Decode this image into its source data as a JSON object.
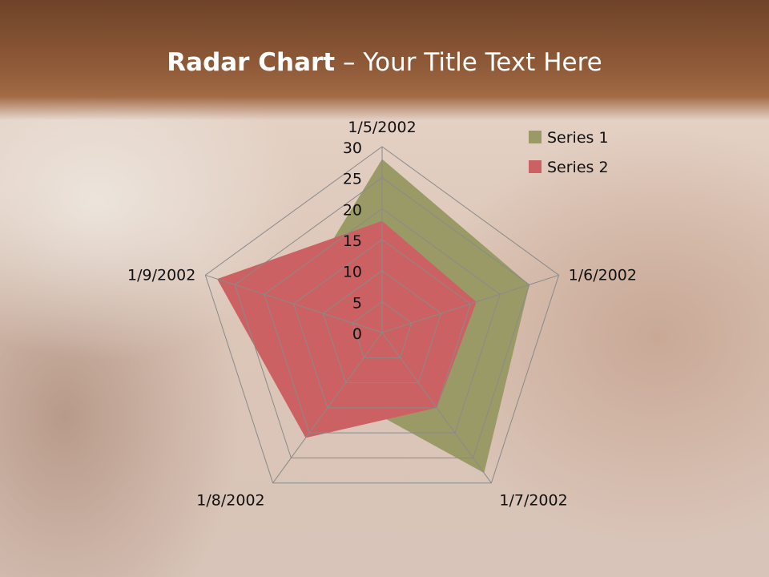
{
  "slide": {
    "title_bold": "Radar Chart",
    "title_rest": " – Your Title Text Here"
  },
  "chart_data": {
    "type": "radar",
    "categories": [
      "1/5/2002",
      "1/6/2002",
      "1/7/2002",
      "1/8/2002",
      "1/9/2002"
    ],
    "series": [
      {
        "name": "Series 1",
        "values": [
          28,
          25,
          28,
          12,
          15
        ],
        "color": "#9a9a66"
      },
      {
        "name": "Series 2",
        "values": [
          18,
          16,
          15,
          21,
          28
        ],
        "color": "#cc6163"
      }
    ],
    "rlim": [
      0,
      30
    ],
    "ticks": [
      "0",
      "5",
      "10",
      "15",
      "20",
      "25",
      "30"
    ],
    "legend": "top-right",
    "grid": true
  }
}
